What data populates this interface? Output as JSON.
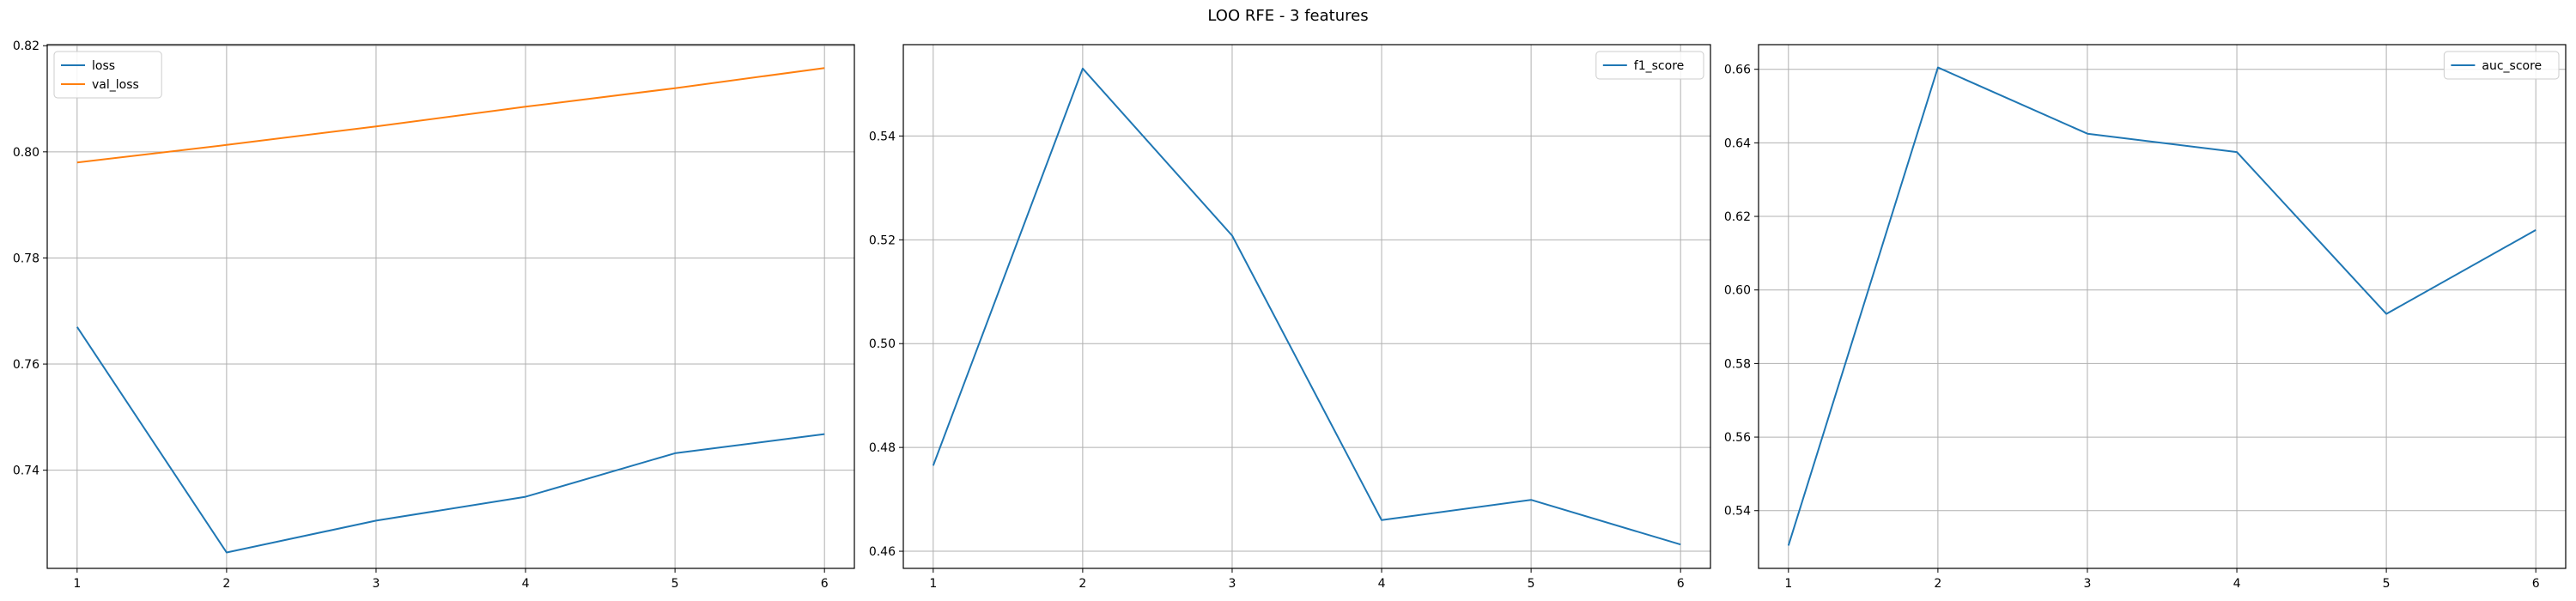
{
  "figure": {
    "title": "LOO RFE - 3 features"
  },
  "chart_data": [
    {
      "type": "line",
      "x": [
        1,
        2,
        3,
        4,
        5,
        6
      ],
      "series": [
        {
          "name": "loss",
          "color": "#1f77b4",
          "values": [
            0.767,
            0.7245,
            0.7305,
            0.735,
            0.7432,
            0.7468
          ]
        },
        {
          "name": "val_loss",
          "color": "#ff7f0e",
          "values": [
            0.798,
            0.8013,
            0.8048,
            0.8085,
            0.812,
            0.8158
          ]
        }
      ],
      "xlim": [
        0.8,
        6.2
      ],
      "ylim": [
        0.7215,
        0.8202
      ],
      "xticks": [
        1,
        2,
        3,
        4,
        5,
        6
      ],
      "yticks": [
        0.74,
        0.76,
        0.78,
        0.8,
        0.82
      ],
      "ytick_labels": [
        "0.74",
        "0.76",
        "0.78",
        "0.80",
        "0.82"
      ],
      "legend": "upper-left",
      "grid": true
    },
    {
      "type": "line",
      "x": [
        1,
        2,
        3,
        4,
        5,
        6
      ],
      "series": [
        {
          "name": "f1_score",
          "color": "#1f77b4",
          "values": [
            0.4765,
            0.553,
            0.5208,
            0.466,
            0.4699,
            0.4613
          ]
        }
      ],
      "xlim": [
        0.8,
        6.2
      ],
      "ylim": [
        0.4567,
        0.5576
      ],
      "xticks": [
        1,
        2,
        3,
        4,
        5,
        6
      ],
      "yticks": [
        0.46,
        0.48,
        0.5,
        0.52,
        0.54
      ],
      "ytick_labels": [
        "0.46",
        "0.48",
        "0.50",
        "0.52",
        "0.54"
      ],
      "legend": "upper-right",
      "grid": true
    },
    {
      "type": "line",
      "x": [
        1,
        2,
        3,
        4,
        5,
        6
      ],
      "series": [
        {
          "name": "auc_score",
          "color": "#1f77b4",
          "values": [
            0.5305,
            0.6605,
            0.6425,
            0.6375,
            0.5935,
            0.6163
          ]
        }
      ],
      "xlim": [
        0.8,
        6.2
      ],
      "ylim": [
        0.5243,
        0.6667
      ],
      "xticks": [
        1,
        2,
        3,
        4,
        5,
        6
      ],
      "yticks": [
        0.54,
        0.56,
        0.58,
        0.6,
        0.62,
        0.64,
        0.66
      ],
      "ytick_labels": [
        "0.54",
        "0.56",
        "0.58",
        "0.60",
        "0.62",
        "0.64",
        "0.66"
      ],
      "legend": "upper-right",
      "grid": true
    }
  ]
}
